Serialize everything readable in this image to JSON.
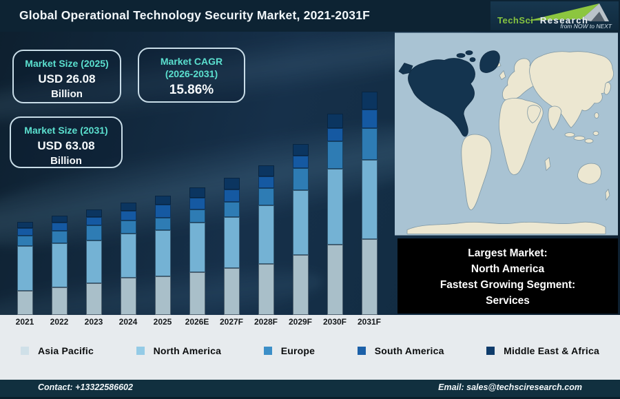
{
  "header": {
    "title": "Global Operational Technology Security Market, 2021-2031F",
    "logo": {
      "brand_primary": "TechSci",
      "brand_secondary": "Research",
      "tagline": "from NOW to NEXT",
      "brand_green": "#86c440"
    }
  },
  "callouts": {
    "market_2025": {
      "title": "Market Size (2025)",
      "value": "USD 26.08",
      "unit": "Billion"
    },
    "cagr": {
      "title_line1": "Market CAGR",
      "title_line2": "(2026-2031)",
      "value": "15.86%"
    },
    "market_2031": {
      "title": "Market Size (2031)",
      "value": "USD 63.08",
      "unit": "Billion"
    }
  },
  "chart_data": {
    "type": "bar",
    "stacked": true,
    "title": "Global Operational Technology Security Market, 2021-2031F",
    "categories": [
      "2021",
      "2022",
      "2023",
      "2024",
      "2025",
      "2026E",
      "2027F",
      "2028F",
      "2029F",
      "2030F",
      "2031F"
    ],
    "units": "relative segment heights in px (chart displays no y-axis)",
    "series": [
      {
        "name": "Asia Pacific",
        "color": "#a9bfc9",
        "values": [
          35,
          40,
          46,
          54,
          56,
          62,
          68,
          74,
          87,
          102,
          110
        ]
      },
      {
        "name": "North America",
        "color": "#74b2d4",
        "values": [
          65,
          64,
          62,
          64,
          67,
          72,
          74,
          85,
          94,
          110,
          115
        ]
      },
      {
        "name": "Europe",
        "color": "#2e7cb4",
        "values": [
          15,
          18,
          22,
          19,
          18,
          19,
          22,
          25,
          32,
          40,
          46
        ]
      },
      {
        "name": "South America",
        "color": "#1559a2",
        "values": [
          11,
          12,
          12,
          14,
          19,
          17,
          18,
          17,
          18,
          19,
          27
        ]
      },
      {
        "name": "Middle East & Africa",
        "color": "#0b3560",
        "values": [
          9,
          10,
          11,
          12,
          13,
          15,
          17,
          16,
          17,
          21,
          26
        ]
      }
    ],
    "annotations": {
      "market_size_2025_usd_billion": 26.08,
      "market_size_2031_usd_billion": 63.08,
      "cagr_2026_2031_percent": 15.86
    },
    "legend_position": "bottom",
    "grid": false
  },
  "legend": {
    "items": [
      {
        "label": "Asia Pacific",
        "color": "#cfe0e8"
      },
      {
        "label": "North America",
        "color": "#94cbe6"
      },
      {
        "label": "Europe",
        "color": "#3c8fc8"
      },
      {
        "label": "South America",
        "color": "#1c60a8"
      },
      {
        "label": "Middle East & Africa",
        "color": "#0f3c6b"
      }
    ]
  },
  "map": {
    "highlighted_region": "North America",
    "colors": {
      "ocean": "#a9c3d3",
      "land": "#ece7d1",
      "highlight": "#14344f",
      "land_stroke": "#7e97a4"
    }
  },
  "info_box": {
    "lines": [
      "Largest Market:",
      "North America",
      "Fastest Growing Segment:",
      "Services"
    ]
  },
  "footer": {
    "contact": "Contact: +13322586602",
    "email": "Email: sales@techsciresearch.com"
  }
}
